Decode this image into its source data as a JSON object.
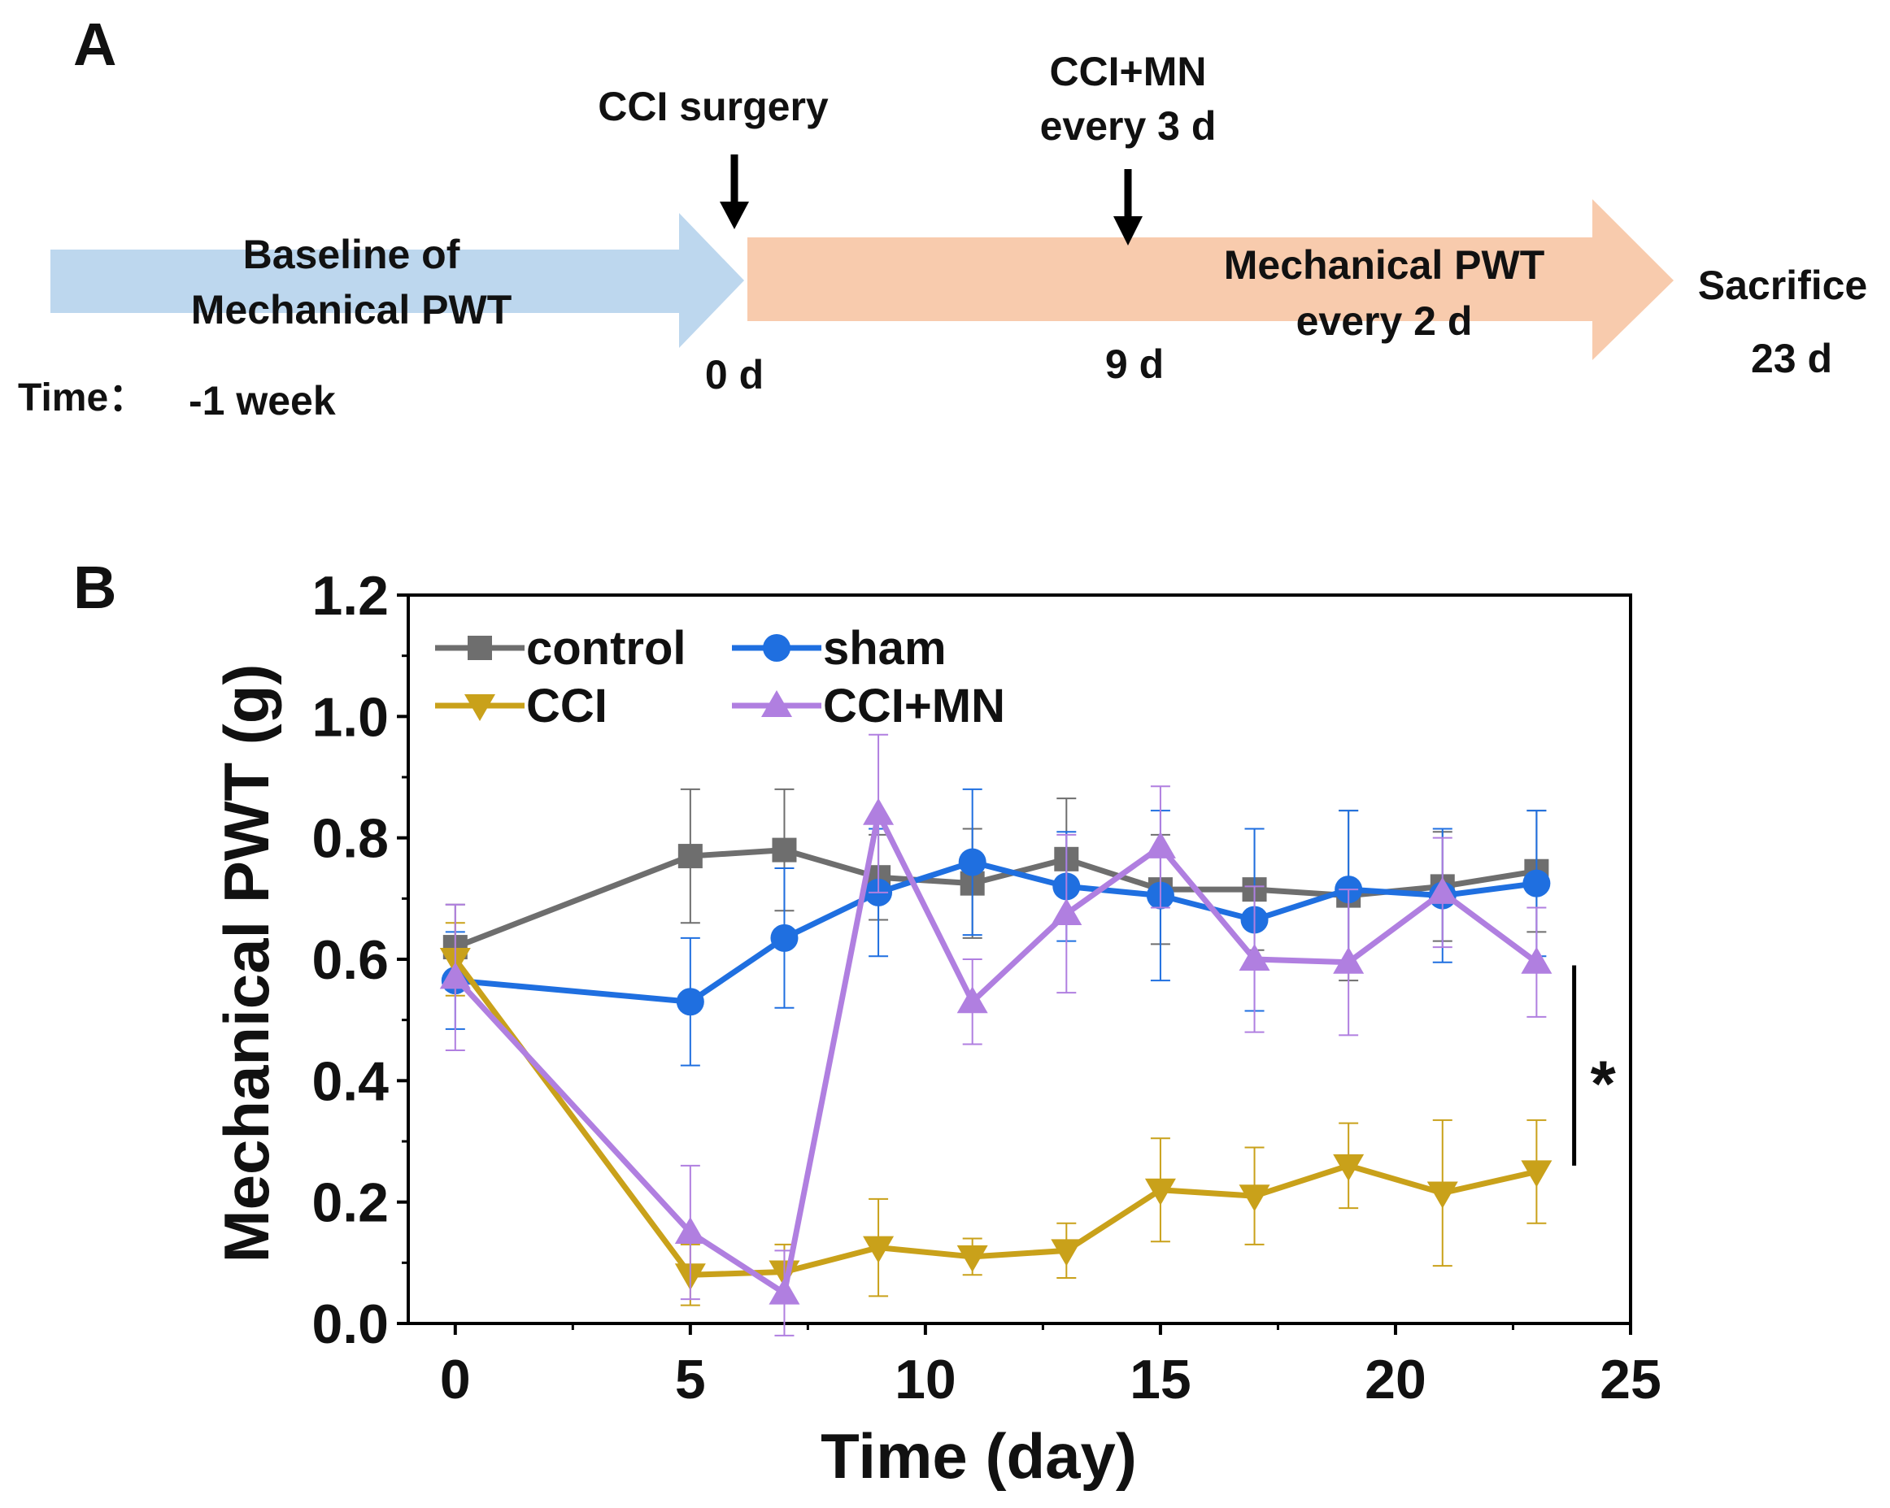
{
  "panel_a": {
    "label": "A",
    "cci_surgery": "CCI surgery",
    "cci_mn_line1": "CCI+MN",
    "cci_mn_line2": "every 3 d",
    "baseline_line1": "Baseline of",
    "baseline_line2": "Mechanical PWT",
    "mech_line1": "Mechanical PWT",
    "mech_line2": "every 2 d",
    "sacrifice": "Sacrifice",
    "time_label": "Time：",
    "t_minus1": "-1 week",
    "t0": "0 d",
    "t9": "9 d",
    "t23": "23 d",
    "colors": {
      "baseline_arrow": "#bdd7ee",
      "treatment_arrow": "#f8cbad",
      "pointer": "#000000"
    }
  },
  "panel_b": {
    "label": "B"
  },
  "chart_data": {
    "type": "line",
    "title": "",
    "xlabel": "Time (day)",
    "ylabel": "Mechanical PWT (g)",
    "xlim": [
      -1,
      25
    ],
    "ylim": [
      0.0,
      1.2
    ],
    "xticks": [
      0,
      5,
      10,
      15,
      20,
      25
    ],
    "yticks": [
      0.0,
      0.2,
      0.4,
      0.6,
      0.8,
      1.0,
      1.2
    ],
    "xtick_labels": [
      "0",
      "5",
      "10",
      "15",
      "20",
      "25"
    ],
    "ytick_labels": [
      "0.0",
      "0.2",
      "0.4",
      "0.6",
      "0.8",
      "1.0",
      "1.2"
    ],
    "legend_position": "top-left",
    "x": [
      0,
      5,
      7,
      9,
      11,
      13,
      15,
      17,
      19,
      21,
      23
    ],
    "series": [
      {
        "name": "control",
        "color": "#6e6e6e",
        "marker": "square",
        "values": [
          0.62,
          0.77,
          0.78,
          0.735,
          0.725,
          0.765,
          0.715,
          0.715,
          0.705,
          0.72,
          0.745
        ],
        "errors": [
          0.07,
          0.11,
          0.1,
          0.07,
          0.09,
          0.1,
          0.09,
          0.1,
          0.14,
          0.09,
          0.1
        ]
      },
      {
        "name": "sham",
        "color": "#1f6fe0",
        "marker": "circle",
        "values": [
          0.565,
          0.53,
          0.635,
          0.71,
          0.76,
          0.72,
          0.705,
          0.665,
          0.715,
          0.705,
          0.725
        ],
        "errors": [
          0.08,
          0.105,
          0.115,
          0.105,
          0.12,
          0.09,
          0.14,
          0.15,
          0.13,
          0.11,
          0.12
        ]
      },
      {
        "name": "CCI",
        "color": "#c9a11a",
        "marker": "triangle-down",
        "values": [
          0.6,
          0.08,
          0.085,
          0.125,
          0.11,
          0.12,
          0.22,
          0.21,
          0.26,
          0.215,
          0.25
        ],
        "errors": [
          0.06,
          0.05,
          0.045,
          0.08,
          0.03,
          0.045,
          0.085,
          0.08,
          0.07,
          0.12,
          0.085
        ]
      },
      {
        "name": "CCI+MN",
        "color": "#b07fe0",
        "marker": "triangle-up",
        "values": [
          0.57,
          0.15,
          0.05,
          0.84,
          0.53,
          0.675,
          0.785,
          0.6,
          0.595,
          0.71,
          0.595
        ],
        "errors": [
          0.12,
          0.11,
          0.07,
          0.13,
          0.07,
          0.13,
          0.1,
          0.12,
          0.12,
          0.09,
          0.09
        ]
      }
    ],
    "annotations": [
      {
        "text": "*",
        "x_span": [
          23.8,
          23.8
        ],
        "y_span": [
          0.26,
          0.59
        ]
      }
    ]
  }
}
